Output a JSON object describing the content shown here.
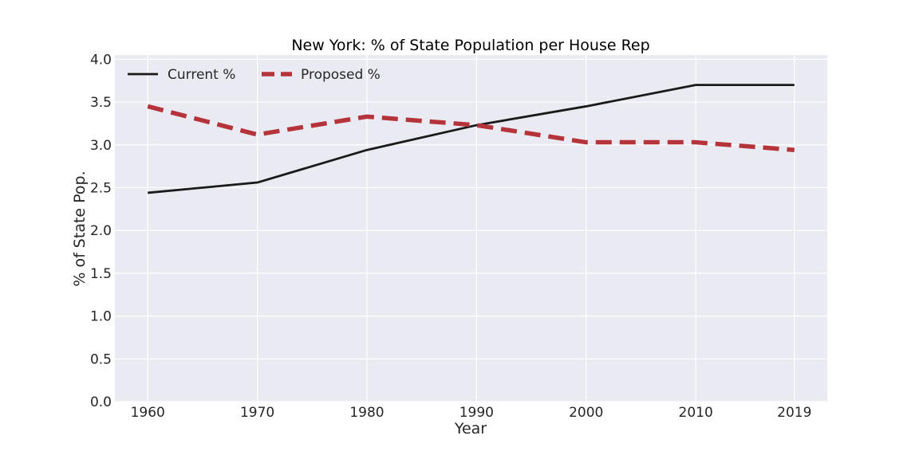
{
  "chart_data": {
    "type": "line",
    "title": "New York: % of State Population per House Rep",
    "xlabel": "Year",
    "ylabel": "% of State Pop.",
    "x": [
      1960,
      1970,
      1980,
      1990,
      2000,
      2010,
      2019
    ],
    "x_tick_labels": [
      "1960",
      "1970",
      "1980",
      "1990",
      "2000",
      "2010",
      "2019"
    ],
    "ylim": [
      0,
      4.05
    ],
    "y_ticks": [
      0.0,
      0.5,
      1.0,
      1.5,
      2.0,
      2.5,
      3.0,
      3.5,
      4.0
    ],
    "y_tick_labels": [
      "0.0",
      "0.5",
      "1.0",
      "1.5",
      "2.0",
      "2.5",
      "3.0",
      "3.5",
      "4.0"
    ],
    "grid": true,
    "legend_position": "top-left",
    "background_color": "#eaeaf2",
    "series": [
      {
        "name": "Current %",
        "values": [
          2.44,
          2.56,
          2.94,
          3.23,
          3.45,
          3.7,
          3.7
        ],
        "color": "#1a1a1a",
        "style": "solid"
      },
      {
        "name": "Proposed %",
        "values": [
          3.45,
          3.12,
          3.33,
          3.23,
          3.03,
          3.03,
          2.94
        ],
        "color": "#b5333a",
        "style": "dashed"
      }
    ]
  }
}
